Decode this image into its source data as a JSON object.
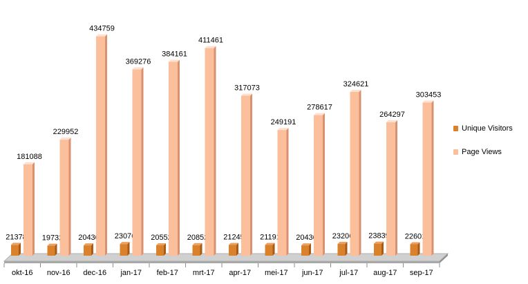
{
  "chart_data": {
    "type": "bar",
    "categories": [
      "okt-16",
      "nov-16",
      "dec-16",
      "jan-17",
      "feb-17",
      "mrt-17",
      "apr-17",
      "mei-17",
      "jun-17",
      "jul-17",
      "aug-17",
      "sep-17"
    ],
    "series": [
      {
        "name": "Unique Visitors",
        "values": [
          21378,
          19732,
          20436,
          23076,
          20552,
          20852,
          21245,
          21191,
          20436,
          23206,
          23839,
          22601
        ],
        "color": "#d9822b",
        "side_color": "#a85a16",
        "top_color": "#e9a060"
      },
      {
        "name": "Page Views",
        "values": [
          181088,
          229952,
          434759,
          369276,
          384161,
          411461,
          317073,
          249191,
          278617,
          324621,
          264297,
          303453
        ],
        "color": "#fbbf9b",
        "side_color": "#d99270",
        "top_color": "#fde0cf"
      }
    ],
    "ylim": [
      0,
      500000
    ],
    "legend_position": "right",
    "grid": false,
    "three_d": true
  }
}
